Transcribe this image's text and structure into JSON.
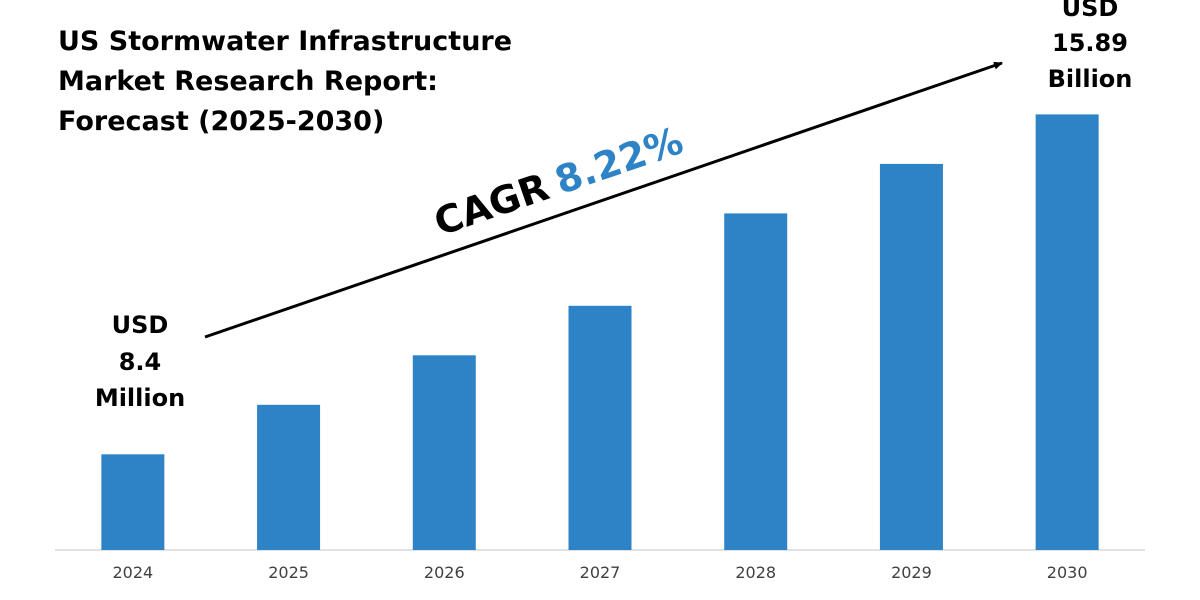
{
  "title_lines": [
    "US Stormwater Infrastructure",
    "Market Research Report:",
    "Forecast (2025-2030)"
  ],
  "cagr": {
    "prefix": "CAGR",
    "value": "8.22%"
  },
  "start_label": [
    "USD",
    "8.4",
    "Million"
  ],
  "end_label": [
    "USD",
    "15.89",
    "Billion"
  ],
  "colors": {
    "bar": "#2E83C6",
    "cagr_value": "#2E83C6",
    "text": "#000000",
    "axis_tick": "#404040",
    "axis_line": "#d9d9d9"
  },
  "chart_data": {
    "type": "bar",
    "categories": [
      "2024",
      "2025",
      "2026",
      "2027",
      "2028",
      "2029",
      "2030"
    ],
    "values": [
      2.9,
      4.4,
      5.9,
      7.4,
      10.2,
      11.7,
      13.2
    ],
    "ylim": [
      0,
      15
    ],
    "grid": false,
    "legend": "none",
    "title": "US Stormwater Infrastructure Market Research Report: Forecast (2025-2030)",
    "xlabel": "",
    "ylabel": ""
  }
}
